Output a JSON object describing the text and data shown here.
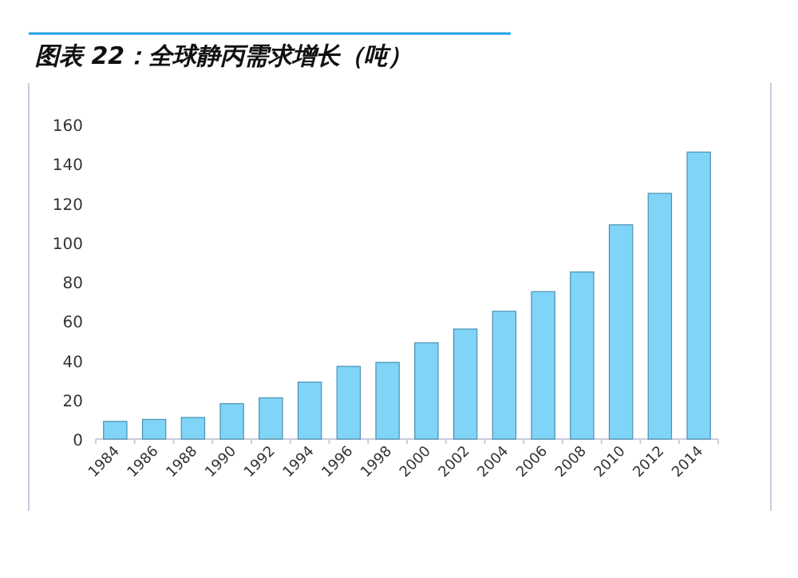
{
  "chart_data": {
    "type": "bar",
    "title": "图表 22：全球静丙需求增长（吨）",
    "categories": [
      "1984",
      "1986",
      "1988",
      "1990",
      "1992",
      "1994",
      "1996",
      "1998",
      "2000",
      "2002",
      "2004",
      "2006",
      "2008",
      "2010",
      "2012",
      "2014"
    ],
    "values": [
      9,
      10,
      11,
      18,
      21,
      29,
      37,
      39,
      49,
      56,
      65,
      75,
      85,
      109,
      125,
      146
    ],
    "color": "#80d4f8",
    "ylim": [
      0,
      160
    ],
    "yticks": [
      0,
      20,
      40,
      60,
      80,
      100,
      120,
      140,
      160
    ],
    "grid": false
  }
}
